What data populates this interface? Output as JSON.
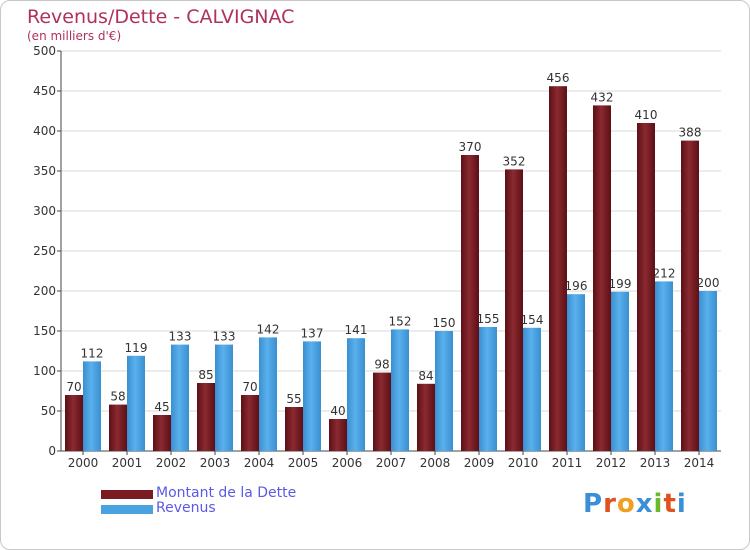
{
  "title": "Revenus/Dette - CALVIGNAC",
  "subtitle": "(en milliers d'€)",
  "logo_text": "Proxiti",
  "colors": {
    "dette": "#7a1b22",
    "revenus": "#4aa3e0",
    "title": "#b03060",
    "legend_text": "#5a5ae6",
    "logo_letters": [
      "#3a8fd8",
      "#e05020",
      "#f0a020",
      "#3a8fd8",
      "#6cb82c",
      "#e05020",
      "#3a8fd8"
    ]
  },
  "chart_data": {
    "type": "bar",
    "categories": [
      "2000",
      "2001",
      "2002",
      "2003",
      "2004",
      "2005",
      "2006",
      "2007",
      "2008",
      "2009",
      "2010",
      "2011",
      "2012",
      "2013",
      "2014"
    ],
    "series": [
      {
        "name": "Montant de la Dette",
        "values": [
          70,
          58,
          45,
          85,
          70,
          55,
          40,
          98,
          84,
          370,
          352,
          456,
          432,
          410,
          388
        ]
      },
      {
        "name": "Revenus",
        "values": [
          112,
          119,
          133,
          133,
          142,
          137,
          141,
          152,
          150,
          155,
          154,
          196,
          199,
          212,
          200
        ]
      }
    ],
    "ylim": [
      0,
      500
    ],
    "yticks": [
      0,
      50,
      100,
      150,
      200,
      250,
      300,
      350,
      400,
      450,
      500
    ],
    "grid": true,
    "legend": "bottom-left"
  }
}
